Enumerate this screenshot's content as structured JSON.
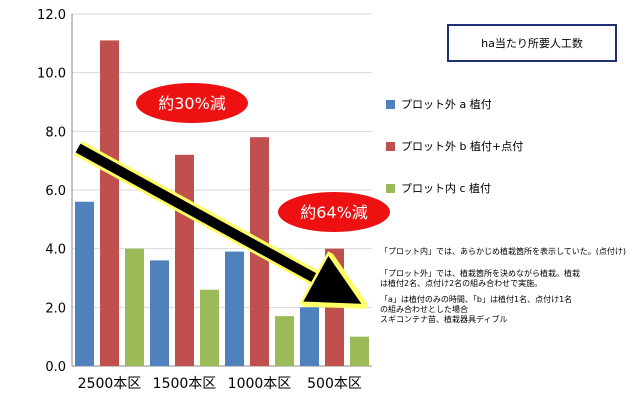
{
  "chart_data": {
    "type": "bar",
    "categories": [
      "2500本区",
      "1500本区",
      "1000本区",
      "500本区"
    ],
    "series": [
      {
        "name": "プロット外 a 植付",
        "color": "#4f81bd",
        "values": [
          5.6,
          3.6,
          3.9,
          2.0
        ]
      },
      {
        "name": "プロット外 b 植付+点付",
        "color": "#c0504d",
        "values": [
          11.1,
          7.2,
          7.8,
          4.0
        ]
      },
      {
        "name": "プロット内 c 植付",
        "color": "#9bbb59",
        "values": [
          4.0,
          2.6,
          1.7,
          1.0
        ]
      }
    ],
    "ylim": [
      0,
      12
    ],
    "yticks": [
      "0.0",
      "2.0",
      "4.0",
      "6.0",
      "8.0",
      "10.0",
      "12.0"
    ],
    "title": "ha当たり所要人工数",
    "legend_position": "right",
    "annotations": [
      {
        "text": "約30%減"
      },
      {
        "text": "約64%減"
      }
    ],
    "notes": [
      "「プロット内」では、あらかじめ植栽箇所を表示していた。(点付け)",
      "「プロット外」では、植栽箇所を決めながら植栽。植栽",
      "は植付2名、点付け2名の組み合わせで実施。",
      "「a」は植付のみの時間、「b」は植付1名、点付け1名",
      "の組み合わせとした場合",
      "スギコンテナ苗、植栽器具ディブル"
    ]
  }
}
